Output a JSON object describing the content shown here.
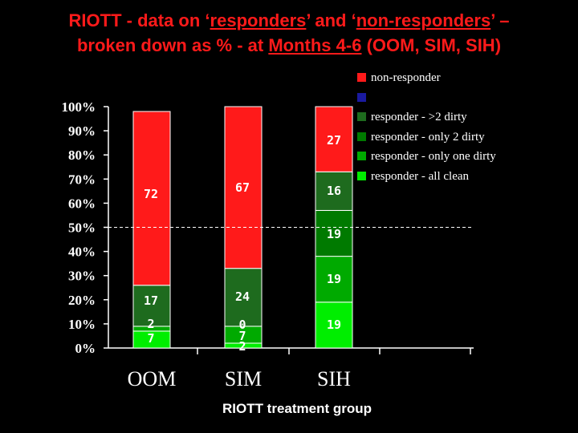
{
  "title": {
    "part1": "RIOTT - data on ‘",
    "part2": "responders",
    "part3": "’ and ‘",
    "part4": "non-responders",
    "part5": "’ –",
    "line2_part1": "broken down as % - at ",
    "line2_part2": "Months 4-6",
    "line2_part3": " (OOM, SIM, SIH)"
  },
  "chart_data": {
    "type": "bar",
    "stacked": true,
    "categories": [
      "OOM",
      "SIM",
      "SIH"
    ],
    "xlabel": "RIOTT treatment group",
    "ylabel": "",
    "ylim": [
      0,
      100
    ],
    "yticks": [
      "0%",
      "10%",
      "20%",
      "30%",
      "40%",
      "50%",
      "60%",
      "70%",
      "80%",
      "90%",
      "100%"
    ],
    "reference_line": 50,
    "series": [
      {
        "name": "responder - all clean",
        "color": "#00ee00",
        "values": [
          7,
          2,
          19
        ],
        "labels": [
          "7",
          "2",
          "19"
        ]
      },
      {
        "name": "responder - only one dirty",
        "color": "#00aa00",
        "values": [
          2,
          7,
          19
        ],
        "labels": [
          "2",
          "7",
          "19"
        ]
      },
      {
        "name": "responder - only 2 dirty",
        "color": "#007a00",
        "values": [
          0,
          0,
          19
        ],
        "labels": [
          "",
          "0",
          "19"
        ]
      },
      {
        "name": "responder - >2 dirty",
        "color": "#1e6b1e",
        "values": [
          17,
          24,
          16
        ],
        "labels": [
          "17",
          "24",
          "16"
        ]
      },
      {
        "name": "",
        "color": "#1a1aa0",
        "values": [
          0,
          0,
          0
        ],
        "labels": [
          "",
          "",
          ""
        ]
      },
      {
        "name": "non-responder",
        "color": "#ff1a1a",
        "values": [
          72,
          67,
          27
        ],
        "labels": [
          "72",
          "67",
          "27"
        ]
      }
    ],
    "legend_placement": "top-right",
    "legend": [
      {
        "label": "non-responder",
        "color": "#ff1a1a"
      },
      {
        "label": "",
        "color": "#1a1aa0"
      },
      {
        "label": "responder - >2 dirty",
        "color": "#1e6b1e"
      },
      {
        "label": "responder - only 2 dirty",
        "color": "#007a00"
      },
      {
        "label": "responder - only one dirty",
        "color": "#00aa00"
      },
      {
        "label": "responder - all clean",
        "color": "#00ee00"
      }
    ]
  }
}
